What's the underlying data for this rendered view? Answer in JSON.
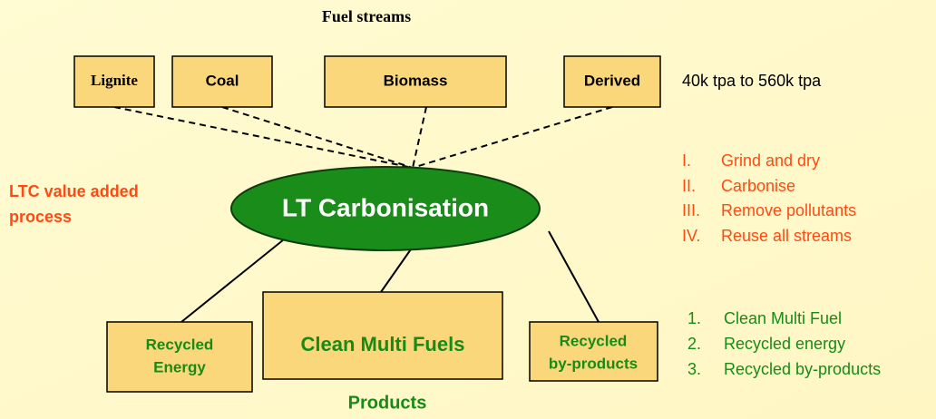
{
  "title": "Fuel streams",
  "sources": [
    "Lignite",
    "Coal",
    "Biomass",
    "Derived"
  ],
  "capacity": "40k tpa to 560k tpa",
  "process": "LT Carbonisation",
  "side_label": [
    "LTC value added",
    "process"
  ],
  "steps": [
    {
      "marker": "I.",
      "text": "Grind and dry"
    },
    {
      "marker": "II.",
      "text": "Carbonise"
    },
    {
      "marker": "III.",
      "text": "Remove pollutants"
    },
    {
      "marker": "IV.",
      "text": "Reuse all streams"
    }
  ],
  "products": [
    [
      "Recycled",
      "Energy"
    ],
    [
      "Clean Multi Fuels"
    ],
    [
      "Recycled",
      "by-products"
    ]
  ],
  "products_caption": "Products",
  "outputs": [
    {
      "marker": "1.",
      "text": "Clean Multi Fuel"
    },
    {
      "marker": "2.",
      "text": "Recycled energy"
    },
    {
      "marker": "3.",
      "text": "Recycled by-products"
    }
  ]
}
